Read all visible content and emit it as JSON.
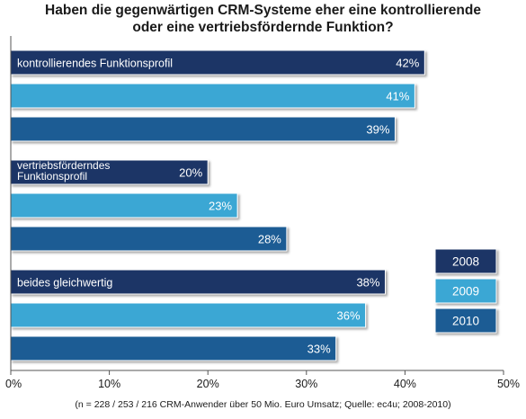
{
  "title_line1": "Haben die gegenwärtigen CRM-Systeme eher eine kontrollierende",
  "title_line2": "oder eine vertriebsfördernde Funktion?",
  "footnote": "(n = 228 / 253 / 216 CRM-Anwender über 50 Mio. Euro Umsatz; Quelle: ec4u; 2008-2010)",
  "colors": {
    "2008": "#1f3566",
    "2009": "#3aa7d4",
    "2010": "#1c5b94",
    "axis": "#555555",
    "grid": "#9aa3ad"
  },
  "chart_data": {
    "type": "bar",
    "orientation": "horizontal",
    "categories": [
      [
        "kontrollierendes Funktionsprofil"
      ],
      [
        "vertriebsförderndes",
        "Funktionsprofil"
      ],
      [
        "beides gleichwertig"
      ]
    ],
    "series": [
      {
        "name": "2008",
        "values": [
          42,
          20,
          38
        ]
      },
      {
        "name": "2009",
        "values": [
          41,
          23,
          36
        ]
      },
      {
        "name": "2010",
        "values": [
          39,
          28,
          33
        ]
      }
    ],
    "value_suffix": "%",
    "xlim": [
      0,
      50
    ],
    "xticks": [
      "0%",
      "10%",
      "20%",
      "30%",
      "40%",
      "50%"
    ],
    "legend_position": "right",
    "grid": false
  }
}
